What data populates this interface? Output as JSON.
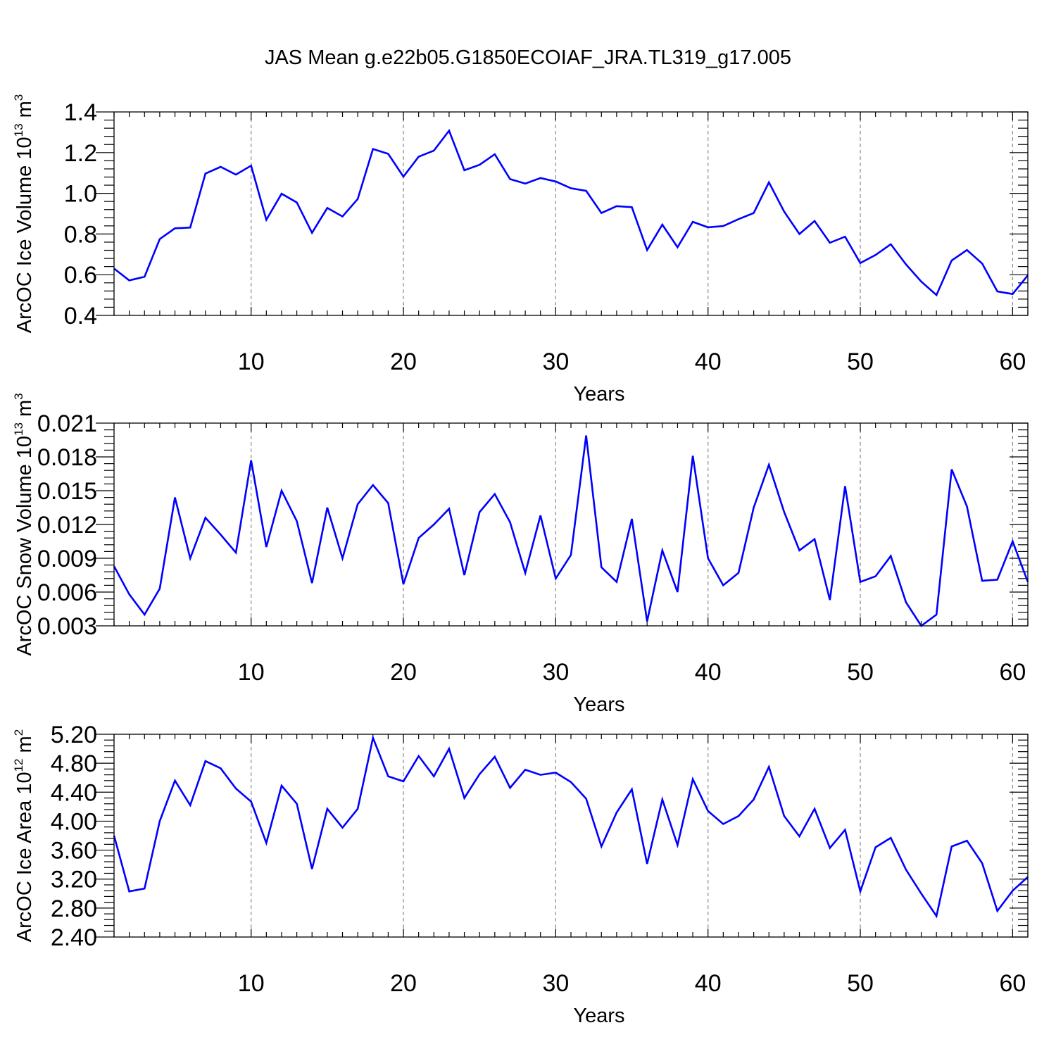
{
  "figure_title": "JAS Mean g.e22b05.G1850ECOIAF_JRA.TL319_g17.005",
  "colors": {
    "line": "#0000ff",
    "grid": "#8a8a8a",
    "axis": "#000000"
  },
  "chart_data": [
    {
      "type": "line",
      "title": "",
      "xlabel": "Years",
      "ylabel": "ArcOC Ice Volume 10",
      "ylabel_exponent": "13",
      "ylabel_unit": " m",
      "ylabel_unit_exponent": "3",
      "xlim": [
        1,
        61
      ],
      "ylim": [
        0.4,
        1.4
      ],
      "x_ticks": [
        10,
        20,
        30,
        40,
        50,
        60
      ],
      "x_tick_labels": [
        "10",
        "20",
        "30",
        "40",
        "50",
        "60"
      ],
      "y_ticks": [
        0.4,
        0.6,
        0.8,
        1.0,
        1.2,
        1.4
      ],
      "y_tick_labels": [
        "0.4",
        "0.6",
        "0.8",
        "1.0",
        "1.2",
        "1.4"
      ],
      "grid": "vertical dashed at major x ticks",
      "series": [
        {
          "x": [
            1,
            2,
            3,
            4,
            5,
            6,
            7,
            8,
            9,
            10,
            11,
            12,
            13,
            14,
            15,
            16,
            17,
            18,
            19,
            20,
            21,
            22,
            23,
            24,
            25,
            26,
            27,
            28,
            29,
            30,
            31,
            32,
            33,
            34,
            35,
            36,
            37,
            38,
            39,
            40,
            41,
            42,
            43,
            44,
            45,
            46,
            47,
            48,
            49,
            50,
            51,
            52,
            53,
            54,
            55,
            56,
            57,
            58,
            59,
            60,
            61
          ],
          "values": [
            0.63,
            0.572,
            0.59,
            0.775,
            0.828,
            0.832,
            1.097,
            1.13,
            1.092,
            1.136,
            0.87,
            0.998,
            0.955,
            0.806,
            0.928,
            0.886,
            0.972,
            1.218,
            1.194,
            1.082,
            1.18,
            1.21,
            1.308,
            1.113,
            1.14,
            1.192,
            1.07,
            1.048,
            1.075,
            1.058,
            1.025,
            1.012,
            0.903,
            0.937,
            0.932,
            0.721,
            0.846,
            0.735,
            0.86,
            0.833,
            0.839,
            0.873,
            0.903,
            1.054,
            0.91,
            0.8,
            0.864,
            0.757,
            0.787,
            0.657,
            0.697,
            0.75,
            0.651,
            0.566,
            0.5,
            0.67,
            0.721,
            0.655,
            0.518,
            0.505,
            0.597
          ]
        }
      ]
    },
    {
      "type": "line",
      "title": "",
      "xlabel": "Years",
      "ylabel": "ArcOC Snow Volume 10",
      "ylabel_exponent": "13",
      "ylabel_unit": " m",
      "ylabel_unit_exponent": "3",
      "xlim": [
        1,
        61
      ],
      "ylim": [
        0.003,
        0.021
      ],
      "x_ticks": [
        10,
        20,
        30,
        40,
        50,
        60
      ],
      "x_tick_labels": [
        "10",
        "20",
        "30",
        "40",
        "50",
        "60"
      ],
      "y_ticks": [
        0.003,
        0.006,
        0.009,
        0.012,
        0.015,
        0.018,
        0.021
      ],
      "y_tick_labels": [
        "0.003",
        "0.006",
        "0.009",
        "0.012",
        "0.015",
        "0.018",
        "0.021"
      ],
      "grid": "vertical dashed at major x ticks",
      "series": [
        {
          "x": [
            1,
            2,
            3,
            4,
            5,
            6,
            7,
            8,
            9,
            10,
            11,
            12,
            13,
            14,
            15,
            16,
            17,
            18,
            19,
            20,
            21,
            22,
            23,
            24,
            25,
            26,
            27,
            28,
            29,
            30,
            31,
            32,
            33,
            34,
            35,
            36,
            37,
            38,
            39,
            40,
            41,
            42,
            43,
            44,
            45,
            46,
            47,
            48,
            49,
            50,
            51,
            52,
            53,
            54,
            55,
            56,
            57,
            58,
            59,
            60,
            61
          ],
          "values": [
            0.0083,
            0.0058,
            0.004,
            0.0063,
            0.0144,
            0.009,
            0.0126,
            0.0111,
            0.0095,
            0.0177,
            0.01,
            0.015,
            0.0123,
            0.0068,
            0.0135,
            0.009,
            0.0138,
            0.0155,
            0.0139,
            0.0067,
            0.0108,
            0.012,
            0.0134,
            0.0075,
            0.0131,
            0.0147,
            0.0122,
            0.0077,
            0.0128,
            0.0072,
            0.0093,
            0.0199,
            0.0082,
            0.0069,
            0.0125,
            0.0034,
            0.0097,
            0.006,
            0.0181,
            0.009,
            0.0066,
            0.0077,
            0.0135,
            0.0173,
            0.0131,
            0.0097,
            0.0107,
            0.0053,
            0.0154,
            0.0069,
            0.0074,
            0.0092,
            0.0051,
            0.003,
            0.004,
            0.0169,
            0.0136,
            0.007,
            0.0071,
            0.0105,
            0.0069
          ]
        }
      ]
    },
    {
      "type": "line",
      "title": "",
      "xlabel": "Years",
      "ylabel": "ArcOC Ice Area 10",
      "ylabel_exponent": "12",
      "ylabel_unit": " m",
      "ylabel_unit_exponent": "2",
      "xlim": [
        1,
        61
      ],
      "ylim": [
        2.4,
        5.2
      ],
      "x_ticks": [
        10,
        20,
        30,
        40,
        50,
        60
      ],
      "x_tick_labels": [
        "10",
        "20",
        "30",
        "40",
        "50",
        "60"
      ],
      "y_ticks": [
        2.4,
        2.8,
        3.2,
        3.6,
        4.0,
        4.4,
        4.8,
        5.2
      ],
      "y_tick_labels": [
        "2.40",
        "2.80",
        "3.20",
        "3.60",
        "4.00",
        "4.40",
        "4.80",
        "5.20"
      ],
      "grid": "vertical dashed at major x ticks",
      "series": [
        {
          "x": [
            1,
            2,
            3,
            4,
            5,
            6,
            7,
            8,
            9,
            10,
            11,
            12,
            13,
            14,
            15,
            16,
            17,
            18,
            19,
            20,
            21,
            22,
            23,
            24,
            25,
            26,
            27,
            28,
            29,
            30,
            31,
            32,
            33,
            34,
            35,
            36,
            37,
            38,
            39,
            40,
            41,
            42,
            43,
            44,
            45,
            46,
            47,
            48,
            49,
            50,
            51,
            52,
            53,
            54,
            55,
            56,
            57,
            58,
            59,
            60,
            61
          ],
          "values": [
            3.8,
            3.03,
            3.07,
            4.0,
            4.56,
            4.22,
            4.83,
            4.73,
            4.45,
            4.27,
            3.7,
            4.49,
            4.24,
            3.34,
            4.17,
            3.91,
            4.17,
            5.15,
            4.62,
            4.55,
            4.9,
            4.62,
            5.0,
            4.32,
            4.65,
            4.89,
            4.46,
            4.71,
            4.64,
            4.67,
            4.54,
            4.31,
            3.65,
            4.12,
            4.44,
            3.41,
            4.3,
            3.67,
            4.58,
            4.14,
            3.96,
            4.07,
            4.3,
            4.75,
            4.07,
            3.79,
            4.17,
            3.63,
            3.88,
            3.03,
            3.64,
            3.77,
            3.33,
            3.0,
            2.69,
            3.65,
            3.73,
            3.42,
            2.76,
            3.04,
            3.23
          ]
        }
      ]
    }
  ]
}
